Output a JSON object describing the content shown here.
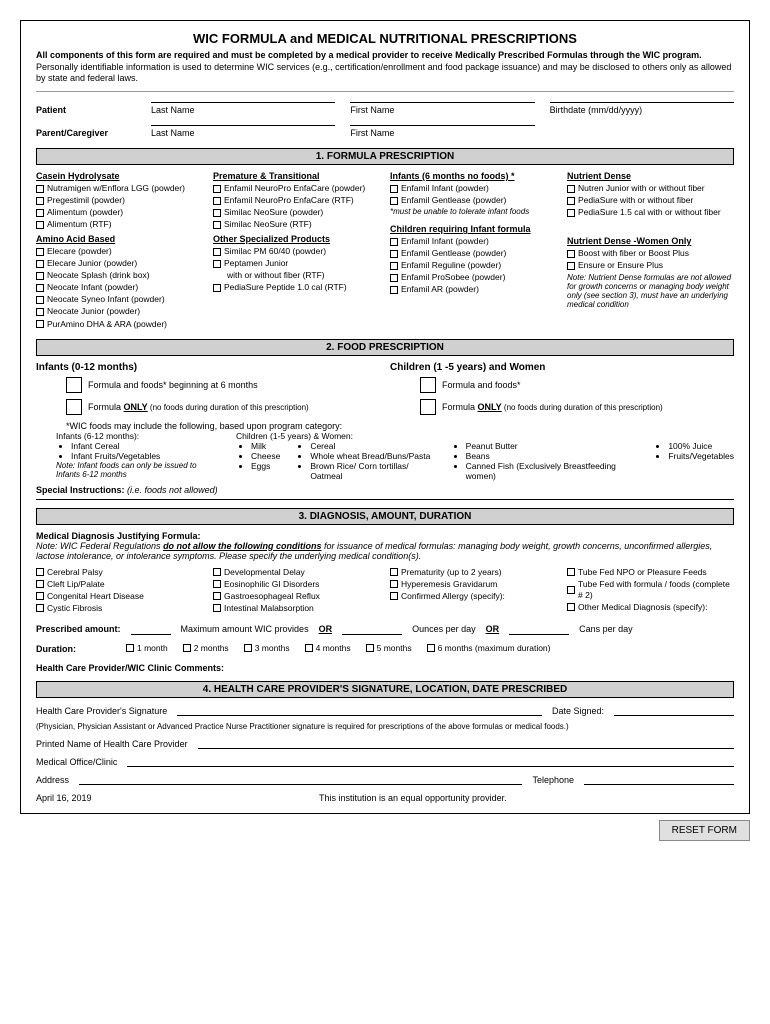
{
  "title": "WIC FORMULA and MEDICAL NUTRITIONAL PRESCRIPTIONS",
  "intro_bold": "All components of this form are required and must be completed by a medical provider to receive Medically Prescribed Formulas through the WIC program.",
  "intro_rest": " Personally identifiable information is used to determine WIC services (e.g., certification/enrollment and food package issuance) and may be disclosed to others only as allowed by state and federal laws.",
  "patient": "Patient",
  "caregiver": "Parent/Caregiver",
  "last_name": "Last Name",
  "first_name": "First Name",
  "birthdate": "Birthdate (mm/dd/yyyy)",
  "s1": {
    "header": "1. FORMULA PRESCRIPTION",
    "col1h1": "Casein Hydrolysate",
    "col1a": [
      "Nutramigen w/Enflora LGG (powder)",
      "Pregestimil (powder)",
      "Alimentum (powder)",
      "Alimentum (RTF)"
    ],
    "col1h2": "Amino Acid Based",
    "col1b": [
      "Elecare (powder)",
      "Elecare Junior (powder)",
      "Neocate Splash (drink box)",
      "Neocate Infant (powder)",
      "Neocate Syneo Infant (powder)",
      "Neocate Junior (powder)",
      "PurAmino DHA & ARA (powder)"
    ],
    "col2h1": "Premature & Transitional",
    "col2a": [
      "Enfamil NeuroPro EnfaCare (powder)",
      "Enfamil NeuroPro EnfaCare (RTF)",
      "Similac NeoSure (powder)",
      "Similac NeoSure (RTF)"
    ],
    "col2h2": "Other Specialized Products",
    "col2b": [
      "Similac PM 60/40 (powder)",
      "Peptamen Junior",
      "    with or without fiber (RTF)",
      "PediaSure Peptide 1.0 cal (RTF)"
    ],
    "col3h1": "Infants (6 months no foods) *",
    "col3a": [
      "Enfamil Infant (powder)",
      "Enfamil Gentlease (powder)"
    ],
    "col3note": "*must be unable to tolerate infant foods",
    "col3h2": "Children requiring Infant formula",
    "col3b": [
      "Enfamil Infant (powder)",
      "Enfamil Gentlease (powder)",
      "Enfamil Reguline (powder)",
      "Enfamil ProSobee (powder)",
      "Enfamil AR (powder)"
    ],
    "col4h1": "Nutrient Dense",
    "col4a": [
      "Nutren Junior with or without fiber",
      "PediaSure with or without fiber",
      "PediaSure 1.5 cal with or without fiber"
    ],
    "col4h2": "Nutrient Dense -Women Only",
    "col4b": [
      "Boost with fiber or Boost Plus",
      "Ensure  or Ensure Plus"
    ],
    "col4note": "Note: Nutrient Dense formulas are not allowed for growth concerns or managing body weight only (see section 3), must have an underlying medical condition"
  },
  "s2": {
    "header": "2. FOOD PRESCRIPTION",
    "infants": "Infants (0-12 months)",
    "children": "Children (1 -5 years) and Women",
    "opt1": "Formula and foods* beginning at 6 months",
    "opt2a": "Formula ",
    "opt2b": "ONLY",
    "opt2c": " (no foods during duration of this prescription)",
    "opt3": "Formula and foods*",
    "wic_note": "*WIC foods may include the following, based upon program category:",
    "inf_h": "Infants (6-12 months):",
    "inf_items": [
      "Infant Cereal",
      "Infant Fruits/Vegetables"
    ],
    "inf_note": "Note: Infant foods can only be issued to Infants 6-12 months",
    "ch_h": "Children (1-5 years) & Women:",
    "ch_c1": [
      "Milk",
      "Cheese",
      "Eggs"
    ],
    "ch_c2": [
      "Cereal",
      "Whole wheat Bread/Buns/Pasta",
      "Brown Rice/ Corn tortillas/ Oatmeal"
    ],
    "ch_c3": [
      "Peanut Butter",
      "Beans",
      "Canned Fish (Exclusively Breastfeeding women)"
    ],
    "ch_c4": [
      "100% Juice",
      "Fruits/Vegetables"
    ],
    "special": "Special Instructions:",
    "special_hint": " (i.e. foods not allowed)"
  },
  "s3": {
    "header": "3. DIAGNOSIS, AMOUNT, DURATION",
    "dx_label": "Medical Diagnosis Justifying Formula:",
    "dx_note1": "Note: WIC Federal Regulations ",
    "dx_note2": "do not allow the following conditions",
    "dx_note3": " for issuance of medical formulas:  managing body weight, growth concerns, unconfirmed allergies, lactose intolerance, or intolerance symptoms. Please specify the underlying medical condition(s).",
    "c1": [
      "Cerebral Palsy",
      "Cleft Lip/Palate",
      "Congenital Heart Disease",
      "Cystic Fibrosis"
    ],
    "c2": [
      "Developmental Delay",
      "Eosinophilic GI Disorders",
      "Gastroesophageal Reflux",
      "Intestinal Malabsorption"
    ],
    "c3": [
      "Prematurity (up to 2 years)",
      "Hyperemesis Gravidarum",
      "Confirmed Allergy (specify):"
    ],
    "c4": [
      "Tube Fed NPO or Pleasure Feeds",
      "Tube Fed with formula / foods (complete # 2)",
      "Other Medical Diagnosis (specify):"
    ],
    "amt_label": "Prescribed amount:",
    "amt_max": "Maximum amount WIC provides",
    "or": "OR",
    "oz": "Ounces per day",
    "cans": "Cans per day",
    "dur_label": "Duration:",
    "dur": [
      "1 month",
      "2 months",
      "3 months",
      "4 months",
      "5 months",
      "6 months (maximum duration)"
    ],
    "comments": "Health Care Provider/WIC Clinic Comments:"
  },
  "s4": {
    "header": "4. HEALTH CARE PROVIDER'S SIGNATURE, LOCATION, DATE PRESCRIBED",
    "sig": "Health Care Provider's Signature",
    "date": "Date Signed:",
    "sig_note": "(Physician, Physician Assistant or Advanced Practice Nurse Practitioner signature is required for prescriptions of the above formulas or medical foods.)",
    "printed": "Printed Name of Health Care Provider",
    "office": "Medical Office/Clinic",
    "address": "Address",
    "phone": "Telephone",
    "footer_date": "April 16, 2019",
    "footer_text": "This institution is an equal opportunity provider."
  },
  "reset": "RESET FORM"
}
